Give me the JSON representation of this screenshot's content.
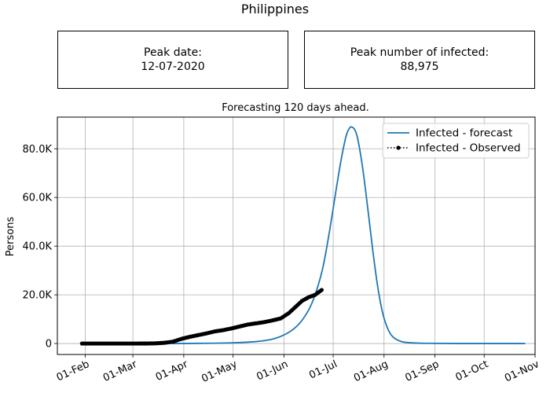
{
  "header": {
    "title": "Philippines",
    "peak_date_label": "Peak date:",
    "peak_date_value": "12-07-2020",
    "peak_infected_label": "Peak number of infected:",
    "peak_infected_value": "88,975"
  },
  "colors": {
    "forecast": "#1f77b4",
    "observed": "#000000",
    "grid": "#b0b0b0"
  },
  "chart_data": {
    "type": "line",
    "title": "Forecasting 120 days ahead.",
    "xlabel": "",
    "ylabel": "Persons",
    "x_axis_type": "date",
    "xlim": [
      "2020-01-15",
      "2020-11-01"
    ],
    "ylim": [
      -4500,
      93000
    ],
    "x_ticks": [
      {
        "date": "2020-02-01",
        "label": "01-Feb"
      },
      {
        "date": "2020-03-01",
        "label": "01-Mar"
      },
      {
        "date": "2020-04-01",
        "label": "01-Apr"
      },
      {
        "date": "2020-05-01",
        "label": "01-May"
      },
      {
        "date": "2020-06-01",
        "label": "01-Jun"
      },
      {
        "date": "2020-07-01",
        "label": "01-Jul"
      },
      {
        "date": "2020-08-01",
        "label": "01-Aug"
      },
      {
        "date": "2020-09-01",
        "label": "01-Sep"
      },
      {
        "date": "2020-10-01",
        "label": "01-Oct"
      },
      {
        "date": "2020-11-01",
        "label": "01-Nov"
      }
    ],
    "y_ticks": [
      {
        "value": 0,
        "label": "0"
      },
      {
        "value": 20000,
        "label": "20.0K"
      },
      {
        "value": 40000,
        "label": "40.0K"
      },
      {
        "value": 60000,
        "label": "60.0K"
      },
      {
        "value": 80000,
        "label": "80.0K"
      }
    ],
    "grid": true,
    "legend_position": "top-right",
    "series": [
      {
        "name": "Infected - forecast",
        "style": "solid",
        "x": [
          "2020-03-25",
          "2020-04-15",
          "2020-05-01",
          "2020-05-15",
          "2020-05-25",
          "2020-06-01",
          "2020-06-07",
          "2020-06-12",
          "2020-06-17",
          "2020-06-21",
          "2020-06-25",
          "2020-06-29",
          "2020-07-03",
          "2020-07-06",
          "2020-07-09",
          "2020-07-11",
          "2020-07-12",
          "2020-07-14",
          "2020-07-16",
          "2020-07-19",
          "2020-07-22",
          "2020-07-25",
          "2020-07-28",
          "2020-07-31",
          "2020-08-03",
          "2020-08-06",
          "2020-08-10",
          "2020-08-15",
          "2020-08-25",
          "2020-09-15",
          "2020-10-26"
        ],
        "y": [
          0,
          100,
          300,
          800,
          1800,
          3500,
          6000,
          9500,
          15000,
          22000,
          32000,
          47000,
          64000,
          76000,
          85500,
          88500,
          88975,
          88000,
          84000,
          72000,
          56000,
          39000,
          24000,
          13000,
          6500,
          3000,
          1200,
          400,
          100,
          0,
          0
        ]
      },
      {
        "name": "Infected - Observed",
        "style": "dotted-marker",
        "x": [
          "2020-01-30",
          "2020-02-15",
          "2020-03-01",
          "2020-03-10",
          "2020-03-15",
          "2020-03-20",
          "2020-03-25",
          "2020-03-31",
          "2020-04-05",
          "2020-04-10",
          "2020-04-15",
          "2020-04-20",
          "2020-04-25",
          "2020-04-30",
          "2020-05-05",
          "2020-05-10",
          "2020-05-15",
          "2020-05-20",
          "2020-05-25",
          "2020-05-30",
          "2020-06-04",
          "2020-06-08",
          "2020-06-12",
          "2020-06-16",
          "2020-06-20",
          "2020-06-24"
        ],
        "y": [
          0,
          0,
          0,
          20,
          100,
          300,
          700,
          2000,
          2800,
          3500,
          4200,
          5000,
          5500,
          6200,
          7000,
          7800,
          8300,
          8800,
          9500,
          10300,
          12500,
          15000,
          17500,
          19000,
          20000,
          22000
        ]
      }
    ]
  }
}
